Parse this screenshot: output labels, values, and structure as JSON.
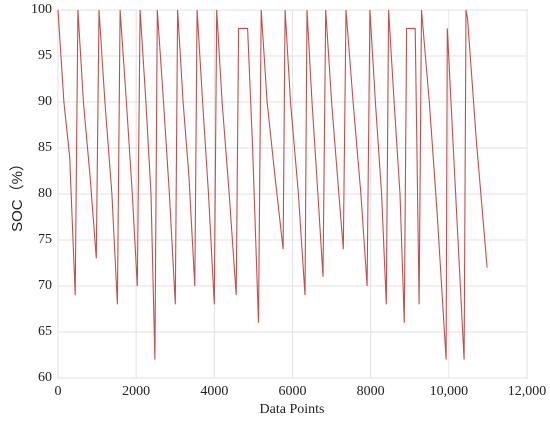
{
  "chart_data": {
    "type": "line",
    "xlabel": "Data Points",
    "ylabel": "SOC（%）",
    "xlim": [
      0,
      12000
    ],
    "ylim": [
      60,
      100
    ],
    "xticks": [
      0,
      2000,
      4000,
      6000,
      8000,
      {
        "value": 10000,
        "label": "10,000"
      },
      {
        "value": 12000,
        "label": "12,000"
      }
    ],
    "yticks": [
      60,
      65,
      70,
      75,
      80,
      85,
      90,
      95,
      100
    ],
    "grid": true,
    "series": [
      {
        "name": "SOC",
        "color": "#c0504d",
        "x": [
          0,
          150,
          300,
          440,
          510,
          650,
          820,
          980,
          1050,
          1200,
          1380,
          1520,
          1590,
          1750,
          1900,
          2030,
          2100,
          2250,
          2380,
          2480,
          2540,
          2700,
          2850,
          3000,
          3060,
          3200,
          3350,
          3500,
          3560,
          3700,
          3850,
          4000,
          4060,
          4200,
          4380,
          4560,
          4620,
          4850,
          4980,
          5130,
          5200,
          5350,
          5550,
          5760,
          5810,
          5950,
          6150,
          6320,
          6370,
          6500,
          6650,
          6780,
          6850,
          7000,
          7150,
          7300,
          7370,
          7550,
          7750,
          7910,
          7980,
          8120,
          8280,
          8400,
          8460,
          8600,
          8750,
          8860,
          8920,
          9140,
          9240,
          9300,
          9500,
          9700,
          9930,
          9960,
          10150,
          10390,
          10440,
          10480,
          10700,
          10980
        ],
        "values": [
          100,
          90,
          84,
          69,
          100,
          90,
          82,
          73,
          100,
          90,
          80,
          68,
          100,
          90,
          80,
          70,
          100,
          90,
          80,
          62,
          100,
          90,
          80,
          68,
          100,
          90,
          82,
          70,
          100,
          90,
          80,
          68,
          100,
          90,
          80,
          69,
          98,
          98,
          85,
          66,
          100,
          90,
          82,
          74,
          100,
          90,
          80,
          69,
          100,
          90,
          80,
          71,
          100,
          90,
          82,
          74,
          100,
          90,
          80,
          70,
          100,
          90,
          80,
          68,
          100,
          90,
          80,
          66,
          98,
          98,
          68,
          100,
          90,
          78,
          62,
          98,
          82,
          62,
          100,
          99,
          86,
          72
        ]
      }
    ]
  }
}
